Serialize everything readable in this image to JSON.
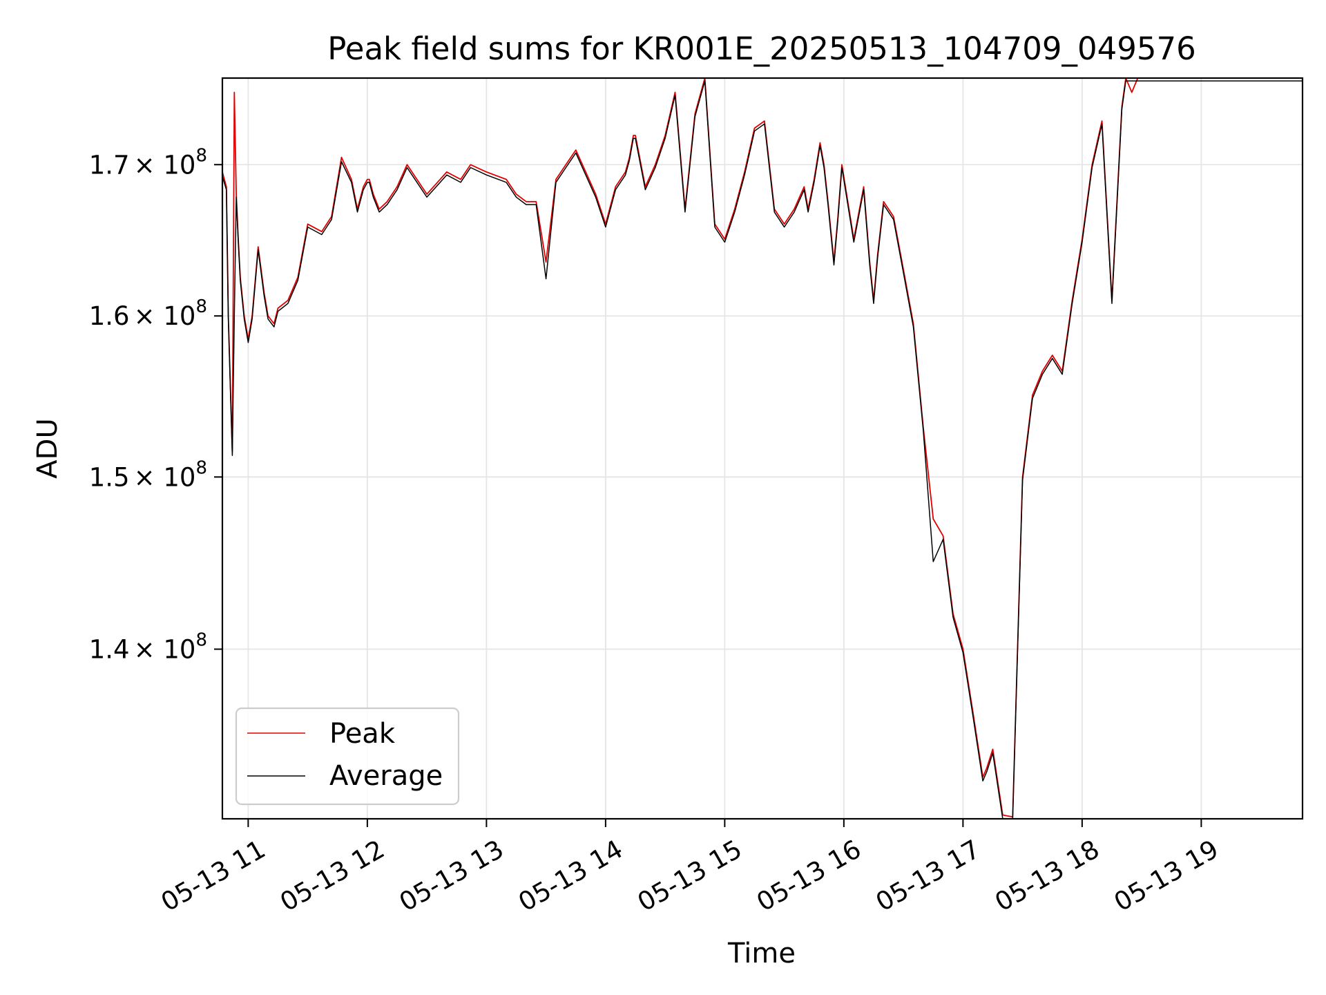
{
  "chart_data": {
    "type": "line",
    "title": "Peak field sums for KR001E_20250513_104709_049576",
    "xlabel": "Time",
    "ylabel": "ADU",
    "y_scale": "log",
    "xlim": [
      "2025-05-13 10:47",
      "2025-05-13 19:51"
    ],
    "ylim": [
      130800000,
      176000000
    ],
    "x_ticks": [
      {
        "time": "2025-05-13 11:00",
        "label": "05-13 11"
      },
      {
        "time": "2025-05-13 12:00",
        "label": "05-13 12"
      },
      {
        "time": "2025-05-13 13:00",
        "label": "05-13 13"
      },
      {
        "time": "2025-05-13 14:00",
        "label": "05-13 14"
      },
      {
        "time": "2025-05-13 15:00",
        "label": "05-13 15"
      },
      {
        "time": "2025-05-13 16:00",
        "label": "05-13 16"
      },
      {
        "time": "2025-05-13 17:00",
        "label": "05-13 17"
      },
      {
        "time": "2025-05-13 18:00",
        "label": "05-13 18"
      },
      {
        "time": "2025-05-13 19:00",
        "label": "05-13 19"
      }
    ],
    "y_ticks": [
      {
        "value": 140000000,
        "mantissa": "1.4",
        "base": "× 10",
        "exp": "8"
      },
      {
        "value": 150000000,
        "mantissa": "1.5",
        "base": "× 10",
        "exp": "8"
      },
      {
        "value": 160000000,
        "mantissa": "1.6",
        "base": "× 10",
        "exp": "8"
      },
      {
        "value": 170000000,
        "mantissa": "1.7",
        "base": "× 10",
        "exp": "8"
      }
    ],
    "grid": true,
    "legend_position": "lower-left",
    "series": [
      {
        "name": "Peak",
        "color": "#e00000",
        "x": [
          "10:47",
          "10:49",
          "10:50",
          "10:52",
          "10:53",
          "10:54",
          "10:55",
          "10:56",
          "10:58",
          "11:00",
          "11:02",
          "11:05",
          "11:08",
          "11:10",
          "11:13",
          "11:15",
          "11:20",
          "11:25",
          "11:30",
          "11:37",
          "11:42",
          "11:47",
          "11:52",
          "11:55",
          "11:58",
          "12:00",
          "12:01",
          "12:03",
          "12:06",
          "12:10",
          "12:15",
          "12:20",
          "12:30",
          "12:40",
          "12:47",
          "12:52",
          "13:00",
          "13:10",
          "13:15",
          "13:20",
          "13:25",
          "13:30",
          "13:35",
          "13:40",
          "13:45",
          "13:50",
          "13:55",
          "14:00",
          "14:05",
          "14:10",
          "14:12",
          "14:14",
          "14:15",
          "14:20",
          "14:25",
          "14:30",
          "14:35",
          "14:40",
          "14:45",
          "14:50",
          "14:55",
          "15:00",
          "15:05",
          "15:10",
          "15:15",
          "15:20",
          "15:25",
          "15:30",
          "15:35",
          "15:40",
          "15:42",
          "15:45",
          "15:48",
          "15:50",
          "15:52",
          "15:55",
          "15:57",
          "15:59",
          "16:05",
          "16:10",
          "16:13",
          "16:15",
          "16:17",
          "16:20",
          "16:25",
          "16:30",
          "16:35",
          "16:40",
          "16:45",
          "16:50",
          "16:55",
          "17:00",
          "17:05",
          "17:10",
          "17:12",
          "17:15",
          "17:20",
          "17:25",
          "17:30",
          "17:35",
          "17:40",
          "17:45",
          "17:50",
          "17:55",
          "18:00",
          "18:05",
          "18:10",
          "18:15",
          "18:20",
          "18:22",
          "18:25",
          "18:28",
          "18:30",
          "18:35",
          "18:40",
          "18:45",
          "18:50",
          "18:55",
          "19:00",
          "19:05",
          "19:10",
          "19:13",
          "19:15",
          "19:16",
          "19:20",
          "19:22",
          "19:25",
          "19:28",
          "19:32",
          "19:35",
          "19:40",
          "19:45",
          "19:48",
          "19:49",
          "19:50",
          "19:51"
        ],
        "values": [
          169500000,
          168500000,
          160000000,
          151500000,
          175000000,
          168000000,
          165000000,
          162500000,
          160000000,
          158500000,
          160000000,
          164500000,
          161500000,
          160000000,
          159500000,
          160500000,
          161000000,
          162500000,
          166000000,
          165500000,
          166500000,
          170500000,
          169000000,
          167000000,
          168500000,
          169000000,
          169000000,
          168000000,
          167000000,
          167500000,
          168500000,
          170000000,
          168000000,
          169500000,
          169000000,
          170000000,
          169500000,
          169000000,
          168000000,
          167500000,
          167500000,
          163500000,
          169000000,
          170000000,
          171000000,
          169500000,
          168000000,
          166000000,
          168500000,
          169500000,
          170500000,
          172000000,
          172000000,
          168500000,
          170000000,
          172000000,
          175000000,
          167000000,
          173500000,
          176000000,
          166000000,
          165000000,
          167000000,
          169500000,
          172500000,
          173000000,
          167000000,
          166000000,
          167000000,
          168500000,
          167000000,
          169000000,
          171500000,
          170000000,
          167500000,
          163500000,
          166500000,
          170000000,
          165000000,
          168500000,
          163500000,
          161000000,
          164000000,
          167500000,
          166500000,
          163000000,
          159500000,
          153000000,
          147500000,
          146500000,
          142000000,
          140000000,
          136500000,
          133000000,
          133500000,
          134500000,
          131000000,
          130900000,
          150000000,
          155000000,
          156500000,
          157500000,
          156500000,
          161000000,
          165000000,
          170000000,
          173000000,
          161000000,
          174000000,
          176000000,
          175000000,
          176000000,
          176000000,
          176000000,
          176000000,
          176000000,
          176000000,
          176000000,
          176000000,
          176000000,
          176000000,
          176000000,
          176000000,
          176000000,
          176000000,
          176000000,
          176000000,
          176000000,
          176000000,
          176000000,
          176000000,
          176000000,
          176000000,
          176000000,
          176000000,
          176000000
        ]
      },
      {
        "name": "Average",
        "color": "#000000",
        "x": [
          "10:47",
          "10:49",
          "10:50",
          "10:52",
          "10:53",
          "10:54",
          "10:55",
          "10:56",
          "10:58",
          "11:00",
          "11:02",
          "11:05",
          "11:08",
          "11:10",
          "11:13",
          "11:15",
          "11:20",
          "11:25",
          "11:30",
          "11:37",
          "11:42",
          "11:47",
          "11:52",
          "11:55",
          "11:58",
          "12:00",
          "12:01",
          "12:03",
          "12:06",
          "12:10",
          "12:15",
          "12:20",
          "12:30",
          "12:40",
          "12:47",
          "12:52",
          "13:00",
          "13:10",
          "13:15",
          "13:20",
          "13:25",
          "13:30",
          "13:35",
          "13:40",
          "13:45",
          "13:50",
          "13:55",
          "14:00",
          "14:05",
          "14:10",
          "14:12",
          "14:14",
          "14:15",
          "14:20",
          "14:25",
          "14:30",
          "14:35",
          "14:40",
          "14:45",
          "14:50",
          "14:55",
          "15:00",
          "15:05",
          "15:10",
          "15:15",
          "15:20",
          "15:25",
          "15:30",
          "15:35",
          "15:40",
          "15:42",
          "15:45",
          "15:48",
          "15:50",
          "15:52",
          "15:55",
          "15:57",
          "15:59",
          "16:05",
          "16:10",
          "16:13",
          "16:15",
          "16:17",
          "16:20",
          "16:25",
          "16:30",
          "16:35",
          "16:40",
          "16:45",
          "16:50",
          "16:55",
          "17:00",
          "17:05",
          "17:10",
          "17:12",
          "17:15",
          "17:20",
          "17:25",
          "17:30",
          "17:35",
          "17:40",
          "17:45",
          "17:50",
          "17:55",
          "18:00",
          "18:05",
          "18:10",
          "18:15",
          "18:20",
          "18:22",
          "18:25",
          "18:28",
          "18:30",
          "18:35",
          "18:40",
          "18:45",
          "18:50",
          "18:55",
          "19:00",
          "19:05",
          "19:10",
          "19:13",
          "19:15",
          "19:16",
          "19:20",
          "19:22",
          "19:25",
          "19:28",
          "19:32",
          "19:35",
          "19:40",
          "19:45",
          "19:48",
          "19:49",
          "19:50",
          "19:51"
        ],
        "values": [
          169200000,
          168300000,
          159800000,
          151300000,
          160000000,
          167800000,
          164800000,
          162300000,
          159800000,
          158300000,
          159800000,
          164300000,
          161300000,
          159800000,
          159300000,
          160300000,
          160800000,
          162300000,
          165800000,
          165300000,
          166300000,
          170200000,
          168800000,
          166800000,
          168300000,
          168800000,
          168800000,
          167800000,
          166800000,
          167300000,
          168300000,
          169800000,
          167800000,
          169300000,
          168800000,
          169800000,
          169300000,
          168800000,
          167800000,
          167300000,
          167300000,
          162400000,
          168800000,
          169800000,
          170800000,
          169300000,
          167800000,
          165800000,
          168300000,
          169300000,
          170300000,
          171800000,
          171800000,
          168300000,
          169800000,
          171800000,
          174800000,
          166800000,
          173300000,
          175800000,
          165800000,
          164800000,
          166800000,
          169300000,
          172300000,
          172800000,
          166800000,
          165800000,
          166800000,
          168300000,
          166800000,
          168800000,
          171300000,
          169800000,
          167300000,
          163300000,
          166300000,
          169800000,
          164800000,
          168300000,
          163300000,
          160800000,
          163800000,
          167300000,
          166300000,
          162800000,
          159300000,
          152800000,
          145000000,
          146300000,
          141800000,
          139800000,
          136300000,
          132800000,
          133300000,
          134300000,
          130800000,
          130800000,
          149800000,
          154800000,
          156300000,
          157300000,
          156300000,
          160800000,
          164800000,
          169800000,
          172800000,
          160800000,
          173800000,
          175800000,
          175800000,
          175800000,
          175800000,
          175800000,
          175800000,
          175800000,
          175800000,
          175800000,
          175800000,
          175800000,
          175800000,
          175800000,
          175800000,
          175800000,
          175800000,
          175800000,
          175800000,
          175800000,
          175800000,
          175800000,
          175800000,
          175800000,
          175800000,
          175800000,
          175800000,
          175800000
        ]
      }
    ]
  }
}
